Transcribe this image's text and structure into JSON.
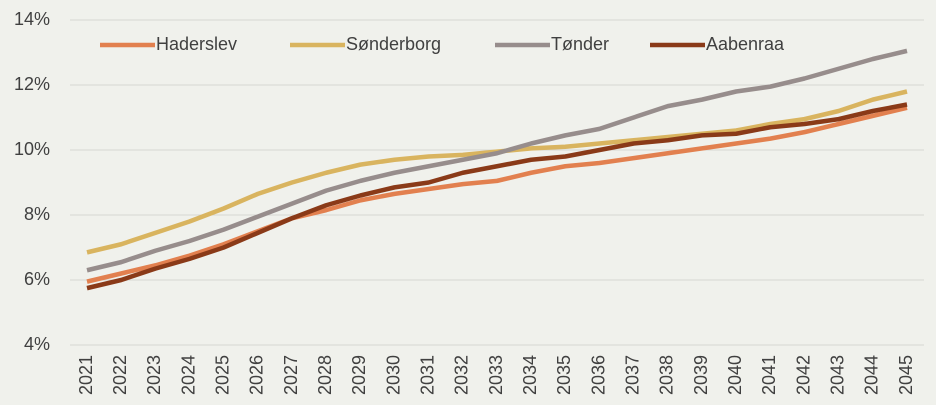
{
  "chart_data": {
    "type": "line",
    "categories": [
      "2021",
      "2022",
      "2023",
      "2024",
      "2025",
      "2026",
      "2027",
      "2028",
      "2029",
      "2030",
      "2031",
      "2032",
      "2033",
      "2034",
      "2035",
      "2036",
      "2037",
      "2038",
      "2039",
      "2040",
      "2041",
      "2042",
      "2043",
      "2044",
      "2045"
    ],
    "series": [
      {
        "name": "Haderslev",
        "color": "#e2804f",
        "values": [
          5.95,
          6.2,
          6.45,
          6.75,
          7.1,
          7.5,
          7.9,
          8.15,
          8.45,
          8.65,
          8.8,
          8.95,
          9.05,
          9.3,
          9.5,
          9.6,
          9.75,
          9.9,
          10.05,
          10.2,
          10.35,
          10.55,
          10.8,
          11.05,
          11.3
        ]
      },
      {
        "name": "Sønderborg",
        "color": "#d9b45f",
        "values": [
          6.85,
          7.1,
          7.45,
          7.8,
          8.2,
          8.65,
          9.0,
          9.3,
          9.55,
          9.7,
          9.8,
          9.85,
          9.95,
          10.05,
          10.1,
          10.2,
          10.3,
          10.4,
          10.5,
          10.6,
          10.8,
          10.95,
          11.2,
          11.55,
          11.8
        ]
      },
      {
        "name": "Tønder",
        "color": "#978d8c",
        "values": [
          6.3,
          6.55,
          6.9,
          7.2,
          7.55,
          7.95,
          8.35,
          8.75,
          9.05,
          9.3,
          9.5,
          9.7,
          9.9,
          10.2,
          10.45,
          10.65,
          11.0,
          11.35,
          11.55,
          11.8,
          11.95,
          12.2,
          12.5,
          12.8,
          13.05
        ]
      },
      {
        "name": "Aabenraa",
        "color": "#8a3a18",
        "values": [
          5.75,
          6.0,
          6.35,
          6.65,
          7.0,
          7.45,
          7.9,
          8.3,
          8.6,
          8.85,
          9.0,
          9.3,
          9.5,
          9.7,
          9.8,
          10.0,
          10.2,
          10.3,
          10.45,
          10.5,
          10.7,
          10.8,
          10.95,
          11.2,
          11.4
        ]
      }
    ],
    "ylim": [
      4,
      14
    ],
    "yticks": [
      {
        "value": 4,
        "label": "4%"
      },
      {
        "value": 6,
        "label": "6%"
      },
      {
        "value": 8,
        "label": "8%"
      },
      {
        "value": 10,
        "label": "10%"
      },
      {
        "value": 12,
        "label": "12%"
      },
      {
        "value": 14,
        "label": "14%"
      }
    ],
    "grid": true,
    "legend": "top"
  }
}
